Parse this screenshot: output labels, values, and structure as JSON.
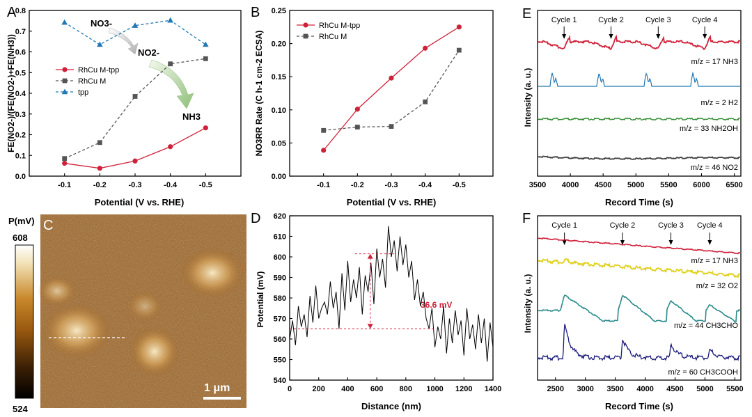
{
  "colors": {
    "red": "#d0213a",
    "gray": "#555555",
    "blue": "#1f77b4",
    "green": "#2e8b2e",
    "dark": "#404040",
    "yellow": "#e0d020",
    "teal": "#2a8a8a",
    "navy": "#1a1a7a",
    "black": "#000000"
  },
  "chart_data": [
    {
      "id": "A",
      "type": "line",
      "panel_label": "A",
      "xlabel": "Potential (V vs. RHE)",
      "ylabel": "FE(NO2-)/(FE(NO2-)+FE(NH3))",
      "categories": [
        "-0.1",
        "-0.2",
        "-0.3",
        "-0.4",
        "-0.5"
      ],
      "ylim": [
        0,
        0.8
      ],
      "yticks": [
        "0.0",
        "0.1",
        "0.2",
        "0.3",
        "0.4",
        "0.5",
        "0.6",
        "0.7",
        "0.8"
      ],
      "series": [
        {
          "name": "RhCu M-tpp",
          "values": [
            0.062,
            0.038,
            0.073,
            0.142,
            0.233
          ],
          "color": "#d0213a",
          "marker": "circle",
          "dash": false
        },
        {
          "name": "RhCu M",
          "values": [
            0.085,
            0.162,
            0.385,
            0.542,
            0.567
          ],
          "color": "#555555",
          "marker": "square",
          "dash": true
        },
        {
          "name": "tpp",
          "values": [
            0.742,
            0.635,
            0.727,
            0.752,
            0.635
          ],
          "color": "#1f77b4",
          "marker": "triangle",
          "dash": true
        }
      ],
      "annotations": {
        "no3": "NO3-",
        "no2": "NO2-",
        "nh3": "NH3"
      }
    },
    {
      "id": "B",
      "type": "line",
      "panel_label": "B",
      "xlabel": "Potential (V vs. RHE)",
      "ylabel": "NO3RR Rate (C h-1 cm-2 ECSA)",
      "categories": [
        "-0.1",
        "-0.2",
        "-0.3",
        "-0.4",
        "-0.5"
      ],
      "ylim": [
        0,
        0.25
      ],
      "yticks": [
        "0.00",
        "0.05",
        "0.10",
        "0.15",
        "0.20",
        "0.25"
      ],
      "series": [
        {
          "name": "RhCu M-tpp",
          "values": [
            0.039,
            0.101,
            0.148,
            0.193,
            0.225
          ],
          "color": "#d0213a",
          "marker": "circle",
          "dash": false
        },
        {
          "name": "RhCu M",
          "values": [
            0.069,
            0.074,
            0.075,
            0.112,
            0.19
          ],
          "color": "#555555",
          "marker": "square",
          "dash": true
        }
      ]
    },
    {
      "id": "C",
      "type": "heatmap",
      "panel_label": "C",
      "colorbar_title": "P(mV)",
      "cbar_max": "608",
      "cbar_min": "524",
      "scalebar": "1 μm"
    },
    {
      "id": "D",
      "type": "line",
      "panel_label": "D",
      "xlabel": "Distance (nm)",
      "ylabel": "Potential (mV)",
      "xlim": [
        0,
        1400
      ],
      "ylim": [
        540,
        620
      ],
      "xticks": [
        "0",
        "200",
        "400",
        "600",
        "800",
        "1000",
        "1200",
        "1400"
      ],
      "yticks": [
        "540",
        "550",
        "560",
        "570",
        "580",
        "590",
        "600",
        "610",
        "620"
      ],
      "upper_ref": 601.5,
      "lower_ref": 565,
      "delta_label": "36.6 mV",
      "x": [
        0,
        20,
        40,
        60,
        80,
        100,
        120,
        140,
        160,
        180,
        200,
        220,
        240,
        260,
        280,
        300,
        320,
        340,
        360,
        380,
        400,
        420,
        440,
        460,
        480,
        500,
        520,
        540,
        560,
        580,
        600,
        620,
        640,
        660,
        680,
        700,
        720,
        740,
        760,
        780,
        800,
        820,
        840,
        860,
        880,
        900,
        920,
        940,
        960,
        980,
        1000,
        1020,
        1040,
        1060,
        1080,
        1100,
        1120,
        1140,
        1160,
        1180,
        1200,
        1220,
        1240,
        1260,
        1280,
        1300,
        1320,
        1340,
        1360,
        1380,
        1400
      ],
      "y": [
        560,
        569,
        557,
        576,
        566,
        572,
        561,
        581,
        568,
        586,
        570,
        575,
        578,
        572,
        588,
        575,
        583,
        565,
        592,
        574,
        598,
        578,
        589,
        580,
        595,
        572,
        591,
        583,
        597,
        577,
        604,
        590,
        599,
        585,
        615,
        600,
        608,
        593,
        610,
        596,
        606,
        590,
        598,
        579,
        589,
        576,
        583,
        570,
        565,
        575,
        556,
        566,
        560,
        576,
        553,
        570,
        558,
        574,
        562,
        569,
        552,
        575,
        560,
        567,
        555,
        572,
        558,
        570,
        549,
        568,
        556
      ],
      "color": "#000000"
    },
    {
      "id": "E",
      "type": "line",
      "panel_label": "E",
      "xlabel": "Record Time (s)",
      "ylabel": "Intensity (a. u.)",
      "xlim": [
        3500,
        6600
      ],
      "xticks": [
        "3500",
        "4000",
        "4500",
        "5000",
        "5500",
        "6000",
        "6500"
      ],
      "cycles": [
        {
          "label": "Cycle 1",
          "x": 3905
        },
        {
          "label": "Cycle 2",
          "x": 4620
        },
        {
          "label": "Cycle 3",
          "x": 5340
        },
        {
          "label": "Cycle 4",
          "x": 6050
        }
      ],
      "series": [
        {
          "name": "m/z = 17 NH3",
          "color": "#d0213a"
        },
        {
          "name": "m/z = 2 H2",
          "color": "#1f77b4"
        },
        {
          "name": "m/z = 33 NH2OH",
          "color": "#2e8b2e"
        },
        {
          "name": "m/z = 46 NO2",
          "color": "#404040"
        }
      ]
    },
    {
      "id": "F",
      "type": "line",
      "panel_label": "F",
      "xlabel": "Record Time (s)",
      "ylabel": "Intensity (a. u.)",
      "xlim": [
        2200,
        5600
      ],
      "xticks": [
        "2500",
        "3000",
        "3500",
        "4000",
        "4500",
        "5000",
        "5500"
      ],
      "cycles": [
        {
          "label": "Cycle 1",
          "x": 2650
        },
        {
          "label": "Cycle 2",
          "x": 3620
        },
        {
          "label": "Cycle 3",
          "x": 4430
        },
        {
          "label": "Cycle 4",
          "x": 5080
        }
      ],
      "series": [
        {
          "name": "m/z = 17 NH3",
          "color": "#d0213a"
        },
        {
          "name": "m/z = 32 O2",
          "color": "#e0d020"
        },
        {
          "name": "m/z = 44 CH3CHO",
          "color": "#2a8a8a"
        },
        {
          "name": "m/z = 60 CH3COOH",
          "color": "#1a1a7a"
        }
      ]
    }
  ]
}
